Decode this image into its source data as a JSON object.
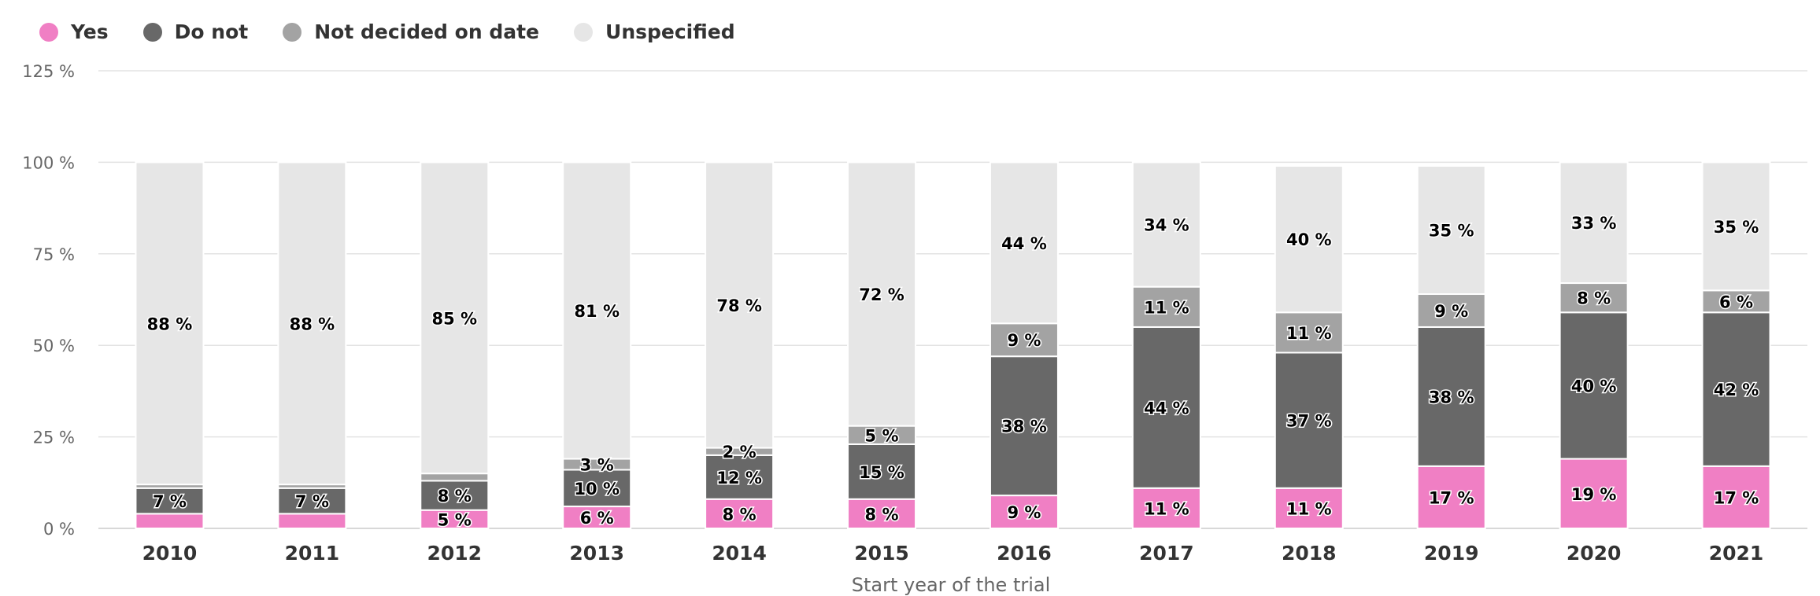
{
  "legend": {
    "items": [
      {
        "label": "Yes",
        "color": "#f07fc4"
      },
      {
        "label": "Do not",
        "color": "#686868"
      },
      {
        "label": "Not decided on date",
        "color": "#a3a3a3"
      },
      {
        "label": "Unspecified",
        "color": "#e6e6e6"
      }
    ]
  },
  "chart_data": {
    "type": "bar",
    "stacked": true,
    "categories": [
      "2010",
      "2011",
      "2012",
      "2013",
      "2014",
      "2015",
      "2016",
      "2017",
      "2018",
      "2019",
      "2020",
      "2021"
    ],
    "series": [
      {
        "name": "Yes",
        "color": "#f07fc4",
        "values": [
          4,
          4,
          5,
          6,
          8,
          8,
          9,
          11,
          11,
          17,
          19,
          17
        ],
        "labels": [
          "",
          "",
          "5 %",
          "6 %",
          "8 %",
          "8 %",
          "9 %",
          "11 %",
          "11 %",
          "17 %",
          "19 %",
          "17 %"
        ]
      },
      {
        "name": "Do not",
        "color": "#686868",
        "values": [
          7,
          7,
          8,
          10,
          12,
          15,
          38,
          44,
          37,
          38,
          40,
          42
        ],
        "labels": [
          "7 %",
          "7 %",
          "8 %",
          "10 %",
          "12 %",
          "15 %",
          "38 %",
          "44 %",
          "37 %",
          "38 %",
          "40 %",
          "42 %"
        ]
      },
      {
        "name": "Not decided on date",
        "color": "#a3a3a3",
        "values": [
          1,
          1,
          2,
          3,
          2,
          5,
          9,
          11,
          11,
          9,
          8,
          6
        ],
        "labels": [
          "",
          "",
          "",
          "3 %",
          "2 %",
          "5 %",
          "9 %",
          "11 %",
          "11 %",
          "9 %",
          "8 %",
          "6 %"
        ]
      },
      {
        "name": "Unspecified",
        "color": "#e6e6e6",
        "values": [
          88,
          88,
          85,
          81,
          78,
          72,
          44,
          34,
          40,
          35,
          33,
          35
        ],
        "labels": [
          "88 %",
          "88 %",
          "85 %",
          "81 %",
          "78 %",
          "72 %",
          "44 %",
          "34 %",
          "40 %",
          "35 %",
          "33 %",
          "35 %"
        ]
      }
    ],
    "xlabel": "Start year of the trial",
    "ylabel": "",
    "ylim": [
      0,
      125
    ],
    "yticks": [
      0,
      25,
      50,
      75,
      100,
      125
    ],
    "ytick_labels": [
      "0 %",
      "25 %",
      "50 %",
      "75 %",
      "100 %",
      "125 %"
    ],
    "grid": true,
    "legend_position": "top-left"
  }
}
